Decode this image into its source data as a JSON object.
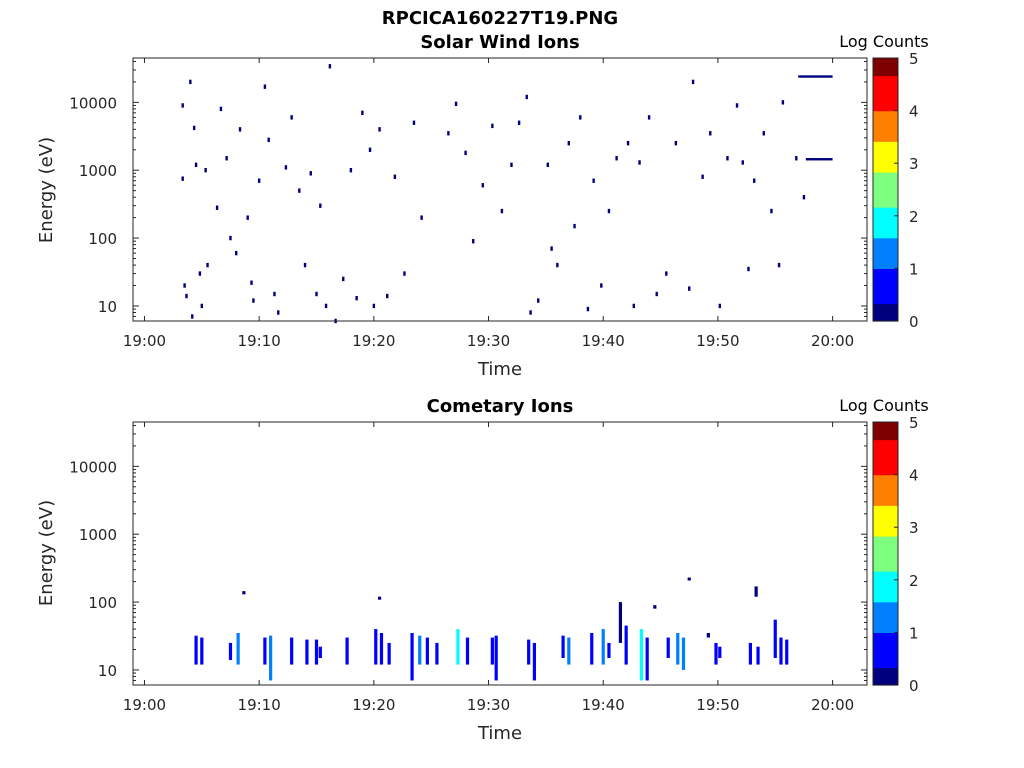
{
  "figure_title": "RPCICA160227T19.PNG",
  "colormap": [
    "#00007f",
    "#0000ff",
    "#007fff",
    "#00ffff",
    "#7fff7f",
    "#ffff00",
    "#ff7f00",
    "#ff0000",
    "#7f0000"
  ],
  "chart_data": [
    {
      "type": "heatmap",
      "title": "Solar Wind Ions",
      "xlabel": "Time",
      "ylabel": "Energy (eV)",
      "y_scale": "log",
      "xlim": [
        "18:59",
        "20:03"
      ],
      "ylim": [
        6,
        45000
      ],
      "xticks": [
        "19:00",
        "19:10",
        "19:20",
        "19:30",
        "19:40",
        "19:50",
        "20:00"
      ],
      "yticks": [
        10,
        100,
        1000,
        10000
      ],
      "ytick_labels": [
        "10",
        "100",
        "1000",
        "10000"
      ],
      "colorbar": {
        "label": "Log Counts",
        "min": 0,
        "max": 5,
        "ticks": [
          "0",
          "1",
          "2",
          "3",
          "4",
          "5"
        ]
      },
      "points": [
        [
          "19:03:30",
          20,
          0.1
        ],
        [
          "19:03:40",
          14,
          0.1
        ],
        [
          "19:04:10",
          7,
          0.1
        ],
        [
          "19:04:50",
          30,
          0.2
        ],
        [
          "19:05:00",
          10,
          0.1
        ],
        [
          "19:03:20",
          750,
          0.1
        ],
        [
          "19:03:20",
          9000,
          0.1
        ],
        [
          "19:04:00",
          20000,
          0.1
        ],
        [
          "19:04:20",
          4200,
          0.1
        ],
        [
          "19:04:30",
          1200,
          0.1
        ],
        [
          "19:05:20",
          1000,
          0.1
        ],
        [
          "19:05:30",
          40,
          0.1
        ],
        [
          "19:06:20",
          280,
          0.1
        ],
        [
          "19:06:40",
          8000,
          0.1
        ],
        [
          "19:07:10",
          1500,
          0.1
        ],
        [
          "19:07:30",
          100,
          0.1
        ],
        [
          "19:08:00",
          60,
          0.1
        ],
        [
          "19:08:20",
          4000,
          0.1
        ],
        [
          "19:09:00",
          200,
          0.1
        ],
        [
          "19:09:20",
          22,
          0.1
        ],
        [
          "19:09:30",
          12,
          0.1
        ],
        [
          "19:10:00",
          700,
          0.1
        ],
        [
          "19:10:30",
          17000,
          0.1
        ],
        [
          "19:10:50",
          2800,
          0.1
        ],
        [
          "19:11:20",
          15,
          0.1
        ],
        [
          "19:11:40",
          8,
          0.1
        ],
        [
          "19:12:20",
          1100,
          0.1
        ],
        [
          "19:12:50",
          6000,
          0.1
        ],
        [
          "19:13:30",
          500,
          0.1
        ],
        [
          "19:14:00",
          40,
          0.1
        ],
        [
          "19:14:30",
          900,
          0.1
        ],
        [
          "19:15:00",
          15,
          0.1
        ],
        [
          "19:15:20",
          300,
          0.1
        ],
        [
          "19:15:50",
          10,
          0.1
        ],
        [
          "19:16:10",
          34000,
          0.1
        ],
        [
          "19:16:40",
          6,
          0.1
        ],
        [
          "19:17:20",
          25,
          0.2
        ],
        [
          "19:18:00",
          1000,
          0.1
        ],
        [
          "19:18:30",
          13,
          0.1
        ],
        [
          "19:19:00",
          7000,
          0.1
        ],
        [
          "19:19:40",
          2000,
          0.1
        ],
        [
          "19:20:00",
          10,
          0.1
        ],
        [
          "19:20:30",
          4000,
          0.1
        ],
        [
          "19:21:10",
          14,
          0.1
        ],
        [
          "19:21:50",
          800,
          0.1
        ],
        [
          "19:22:40",
          30,
          0.1
        ],
        [
          "19:23:30",
          5000,
          0.1
        ],
        [
          "19:24:10",
          200,
          0.1
        ],
        [
          "19:26:30",
          3500,
          0.1
        ],
        [
          "19:27:10",
          9500,
          0.1
        ],
        [
          "19:28:00",
          1800,
          0.1
        ],
        [
          "19:28:40",
          90,
          0.1
        ],
        [
          "19:29:30",
          600,
          0.1
        ],
        [
          "19:30:20",
          4500,
          0.1
        ],
        [
          "19:31:10",
          250,
          0.1
        ],
        [
          "19:32:00",
          1200,
          0.1
        ],
        [
          "19:32:40",
          5000,
          0.1
        ],
        [
          "19:33:20",
          12000,
          0.1
        ],
        [
          "19:33:40",
          8,
          0.1
        ],
        [
          "19:34:20",
          12,
          0.1
        ],
        [
          "19:35:10",
          1200,
          0.1
        ],
        [
          "19:35:30",
          70,
          0.1
        ],
        [
          "19:36:00",
          40,
          0.1
        ],
        [
          "19:37:00",
          2500,
          0.1
        ],
        [
          "19:37:30",
          150,
          0.1
        ],
        [
          "19:38:00",
          6000,
          0.1
        ],
        [
          "19:38:40",
          9,
          0.1
        ],
        [
          "19:39:10",
          700,
          0.1
        ],
        [
          "19:39:50",
          20,
          0.1
        ],
        [
          "19:40:30",
          250,
          0.1
        ],
        [
          "19:41:10",
          1500,
          0.1
        ],
        [
          "19:42:10",
          2500,
          0.1
        ],
        [
          "19:42:40",
          10,
          0.1
        ],
        [
          "19:43:10",
          1300,
          0.1
        ],
        [
          "19:44:00",
          6000,
          0.1
        ],
        [
          "19:44:40",
          15,
          0.1
        ],
        [
          "19:45:30",
          30,
          0.1
        ],
        [
          "19:46:20",
          2500,
          0.1
        ],
        [
          "19:47:30",
          18,
          0.2
        ],
        [
          "19:47:50",
          20000,
          0.1
        ],
        [
          "19:48:40",
          800,
          0.1
        ],
        [
          "19:49:20",
          3500,
          0.1
        ],
        [
          "19:50:10",
          10,
          0.1
        ],
        [
          "19:50:50",
          1500,
          0.1
        ],
        [
          "19:51:40",
          9000,
          0.1
        ],
        [
          "19:52:10",
          1300,
          0.1
        ],
        [
          "19:52:40",
          35,
          0.1
        ],
        [
          "19:53:10",
          700,
          0.1
        ],
        [
          "19:54:00",
          3500,
          0.1
        ],
        [
          "19:54:40",
          250,
          0.1
        ],
        [
          "19:55:20",
          40,
          0.1
        ],
        [
          "19:55:40",
          10000,
          0.1
        ],
        [
          "19:56:50",
          1500,
          0.2
        ],
        [
          "19:57:30",
          400,
          0.1
        ]
      ],
      "segments": [
        [
          "19:57:00",
          "20:00:00",
          24000,
          0.1
        ],
        [
          "19:57:40",
          "20:00:00",
          1450,
          0.1
        ]
      ]
    },
    {
      "type": "heatmap",
      "title": "Cometary Ions",
      "xlabel": "Time",
      "ylabel": "Energy (eV)",
      "y_scale": "log",
      "xlim": [
        "18:59",
        "20:03"
      ],
      "ylim": [
        6,
        45000
      ],
      "xticks": [
        "19:00",
        "19:10",
        "19:20",
        "19:30",
        "19:40",
        "19:50",
        "20:00"
      ],
      "yticks": [
        10,
        100,
        1000,
        10000
      ],
      "ytick_labels": [
        "10",
        "100",
        "1000",
        "10000"
      ],
      "colorbar": {
        "label": "Log Counts",
        "min": 0,
        "max": 5,
        "ticks": [
          "0",
          "1",
          "2",
          "3",
          "4",
          "5"
        ]
      },
      "columns": [
        [
          "19:04:30",
          12,
          32,
          0.5
        ],
        [
          "19:05:00",
          12,
          30,
          0.8
        ],
        [
          "19:07:30",
          14,
          25,
          0.4
        ],
        [
          "19:08:10",
          12,
          35,
          1.0
        ],
        [
          "19:08:40",
          130,
          145,
          0.3
        ],
        [
          "19:10:30",
          12,
          30,
          0.6
        ],
        [
          "19:11:00",
          7,
          32,
          1.1
        ],
        [
          "19:12:50",
          12,
          30,
          0.4
        ],
        [
          "19:14:10",
          12,
          28,
          0.4
        ],
        [
          "19:15:00",
          12,
          28,
          0.9
        ],
        [
          "19:15:20",
          15,
          22,
          0.4
        ],
        [
          "19:17:40",
          12,
          30,
          0.4
        ],
        [
          "19:20:10",
          12,
          40,
          0.6
        ],
        [
          "19:20:30",
          110,
          120,
          0.3
        ],
        [
          "19:20:40",
          12,
          35,
          0.8
        ],
        [
          "19:21:20",
          12,
          25,
          0.4
        ],
        [
          "19:23:20",
          7,
          35,
          0.8
        ],
        [
          "19:24:00",
          12,
          32,
          1.3
        ],
        [
          "19:24:40",
          12,
          30,
          0.6
        ],
        [
          "19:25:30",
          12,
          25,
          0.4
        ],
        [
          "19:27:20",
          12,
          40,
          1.7
        ],
        [
          "19:28:10",
          12,
          30,
          0.6
        ],
        [
          "19:30:20",
          12,
          30,
          0.7
        ],
        [
          "19:30:40",
          7,
          32,
          0.5
        ],
        [
          "19:33:30",
          12,
          28,
          0.6
        ],
        [
          "19:34:00",
          7,
          25,
          0.7
        ],
        [
          "19:36:30",
          15,
          32,
          0.5
        ],
        [
          "19:37:00",
          12,
          30,
          1.0
        ],
        [
          "19:39:00",
          12,
          35,
          0.6
        ],
        [
          "19:40:00",
          12,
          40,
          1.2
        ],
        [
          "19:40:30",
          15,
          25,
          0.5
        ],
        [
          "19:41:30",
          25,
          100,
          0.3
        ],
        [
          "19:42:00",
          12,
          45,
          0.4
        ],
        [
          "19:43:20",
          7,
          40,
          1.6
        ],
        [
          "19:43:50",
          7,
          30,
          0.9
        ],
        [
          "19:44:30",
          80,
          90,
          0.3
        ],
        [
          "19:45:40",
          15,
          30,
          0.4
        ],
        [
          "19:46:30",
          12,
          35,
          1.3
        ],
        [
          "19:47:00",
          10,
          30,
          1.0
        ],
        [
          "19:47:30",
          220,
          230,
          0.3
        ],
        [
          "19:49:10",
          30,
          35,
          0.3
        ],
        [
          "19:49:50",
          12,
          25,
          0.5
        ],
        [
          "19:50:10",
          15,
          22,
          0.4
        ],
        [
          "19:52:50",
          12,
          25,
          0.5
        ],
        [
          "19:53:20",
          120,
          170,
          0.3
        ],
        [
          "19:53:30",
          12,
          22,
          0.6
        ],
        [
          "19:55:00",
          15,
          55,
          0.6
        ],
        [
          "19:55:30",
          12,
          30,
          0.8
        ],
        [
          "19:56:00",
          12,
          28,
          0.5
        ]
      ]
    }
  ]
}
